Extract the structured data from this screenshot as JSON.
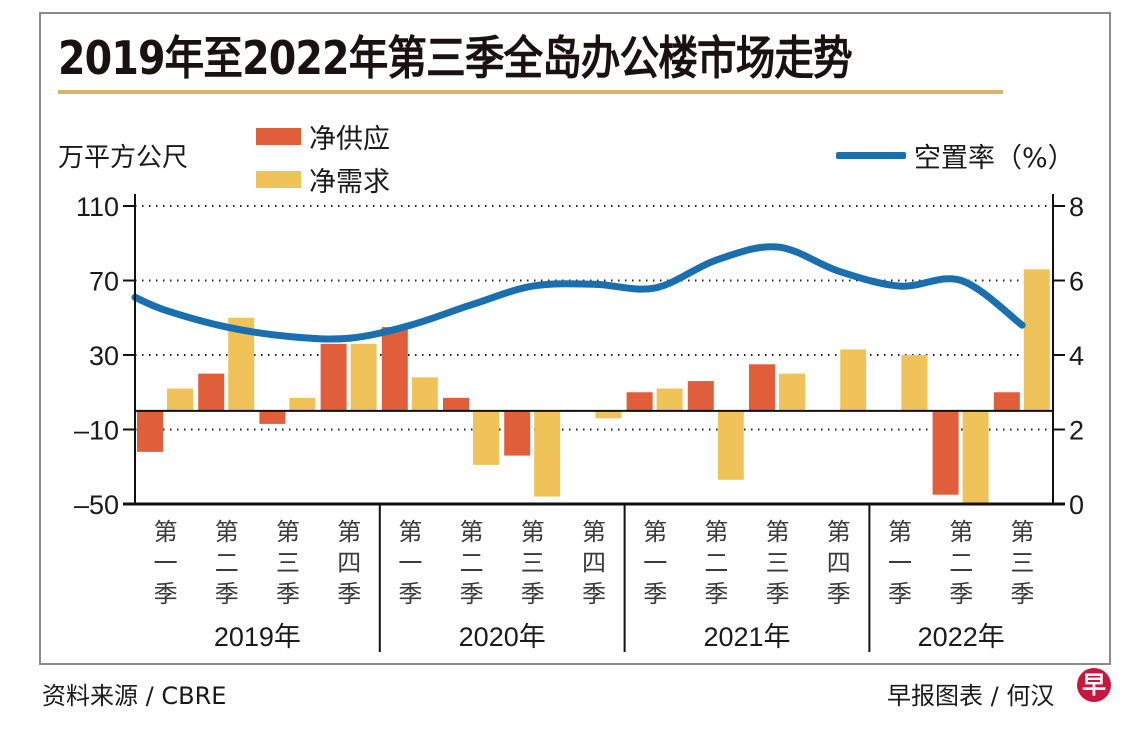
{
  "title": "2019年至2022年第三季全岛办公楼市场走势",
  "unit_label": "万平方公尺",
  "footer": {
    "source": "资料来源 / CBRE",
    "credit": "早报图表 / 何汉",
    "logo_char": "早"
  },
  "colors": {
    "supply": "#e05e3a",
    "demand": "#f0c25a",
    "vacancy": "#1a6fae",
    "title_rule": "#d9b36a"
  },
  "chart_data": {
    "type": "bar",
    "title": "2019年至2022年第三季全岛办公楼市场走势",
    "ylabel": "万平方公尺",
    "y2label": "空置率（%）",
    "ylim": [
      -50,
      110
    ],
    "yticks": [
      110,
      70,
      30,
      -10,
      -50
    ],
    "ytick_labels": [
      "110",
      "70",
      "30",
      "–10",
      "–50"
    ],
    "y2lim": [
      0,
      8
    ],
    "y2ticks": [
      8,
      6,
      4,
      2,
      0
    ],
    "grid": "horizontal dotted",
    "legend": [
      {
        "name": "净供应",
        "type": "bar",
        "color": "#e05e3a"
      },
      {
        "name": "净需求",
        "type": "bar",
        "color": "#f0c25a"
      },
      {
        "name": "空置率（%）",
        "type": "line",
        "color": "#1a6fae"
      }
    ],
    "legend_placement": "top",
    "years": [
      {
        "label": "2019年",
        "quarters": 4
      },
      {
        "label": "2020年",
        "quarters": 4
      },
      {
        "label": "2021年",
        "quarters": 4
      },
      {
        "label": "2022年",
        "quarters": 3
      }
    ],
    "categories": [
      "2019 第一季",
      "2019 第二季",
      "2019 第三季",
      "2019 第四季",
      "2020 第一季",
      "2020 第二季",
      "2020 第三季",
      "2020 第四季",
      "2021 第一季",
      "2021 第二季",
      "2021 第三季",
      "2021 第四季",
      "2022 第一季",
      "2022 第二季",
      "2022 第三季"
    ],
    "quarter_labels": [
      "第一季",
      "第二季",
      "第三季",
      "第四季",
      "第一季",
      "第二季",
      "第三季",
      "第四季",
      "第一季",
      "第二季",
      "第三季",
      "第四季",
      "第一季",
      "第二季",
      "第三季"
    ],
    "series": [
      {
        "name": "净供应",
        "axis": "left",
        "type": "bar",
        "values": [
          -22,
          20,
          -7,
          36,
          45,
          7,
          -24,
          0,
          10,
          16,
          25,
          0,
          0,
          -45,
          10
        ]
      },
      {
        "name": "净需求",
        "axis": "left",
        "type": "bar",
        "values": [
          12,
          50,
          7,
          36,
          18,
          -29,
          -46,
          -4,
          12,
          -37,
          20,
          33,
          30,
          -50,
          76
        ]
      },
      {
        "name": "空置率（%）",
        "axis": "right",
        "type": "line",
        "values": [
          5.2,
          4.75,
          4.5,
          4.45,
          4.8,
          5.35,
          5.85,
          5.9,
          5.8,
          6.55,
          6.9,
          6.25,
          5.85,
          6.0,
          4.8
        ]
      }
    ]
  }
}
